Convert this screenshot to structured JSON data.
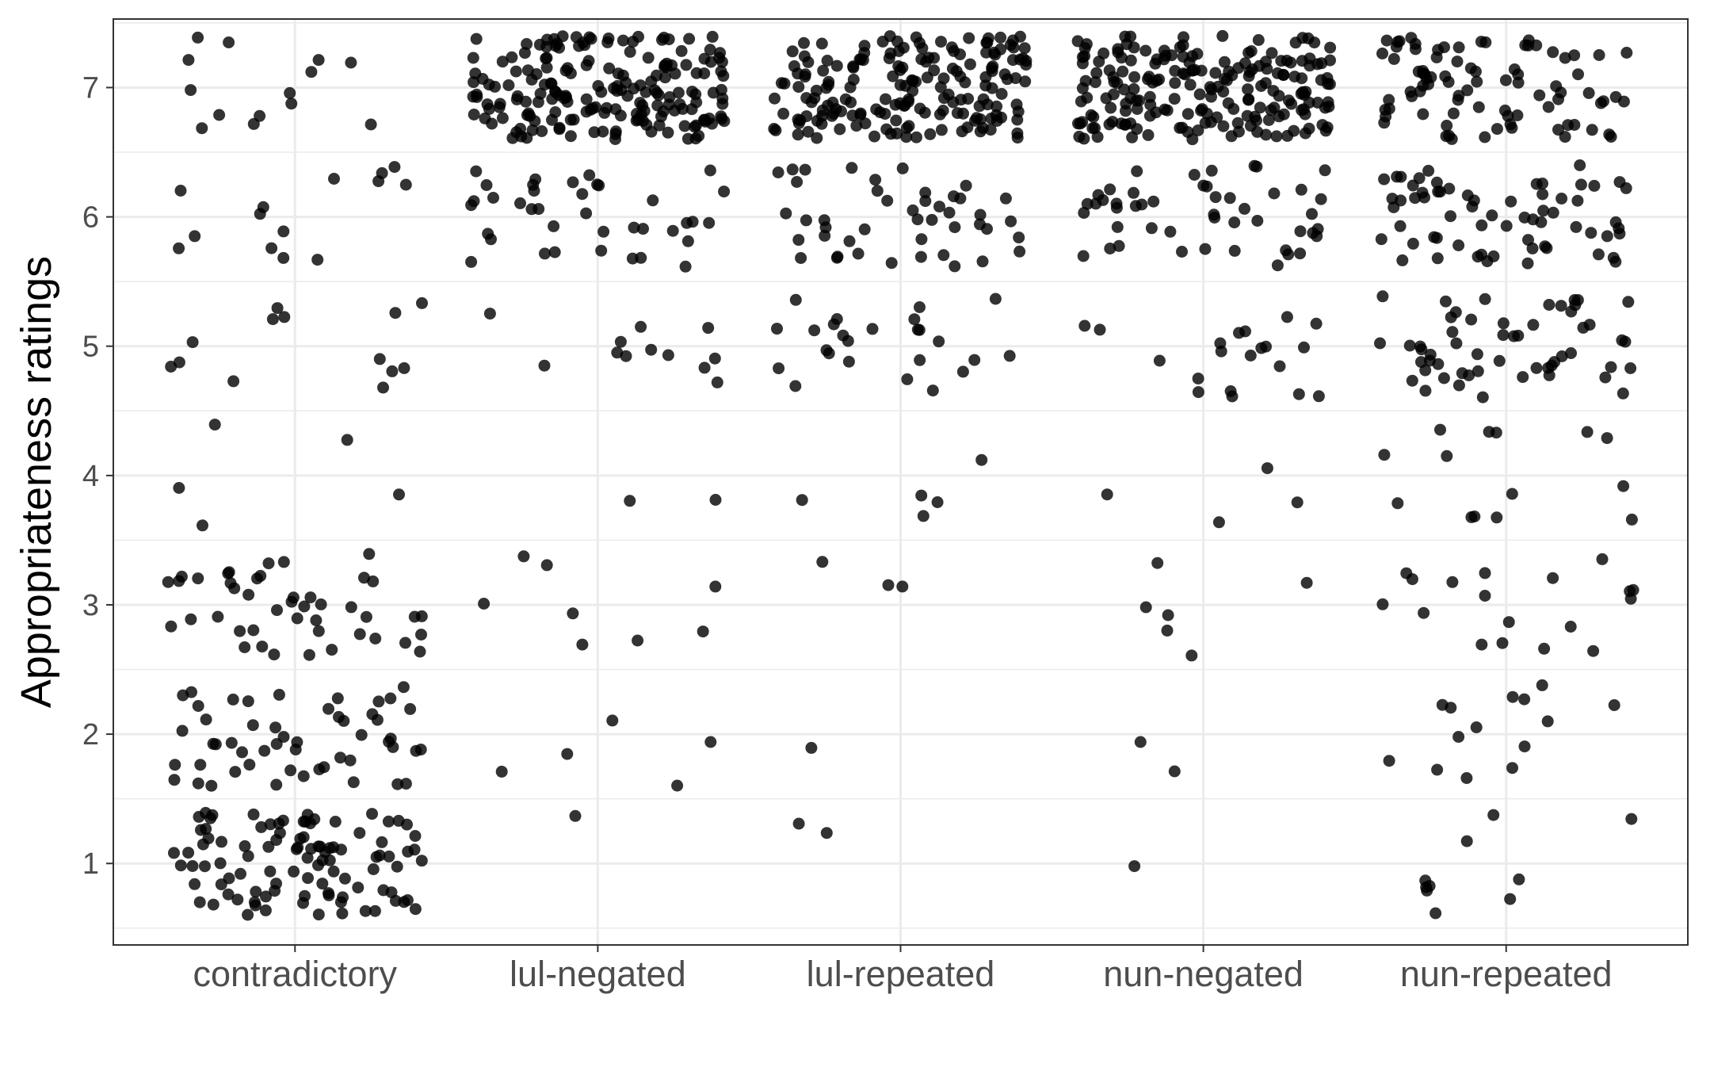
{
  "chart_data": {
    "type": "scatter",
    "subtype": "jitter-strip",
    "title": "",
    "xlabel": "",
    "ylabel": "Appropriateness ratings",
    "categories": [
      "contradictory",
      "lul-negated",
      "lul-repeated",
      "nun-negated",
      "nun-repeated"
    ],
    "y_ticks": [
      1,
      2,
      3,
      4,
      5,
      6,
      7
    ],
    "ylim": [
      0.37,
      7.53
    ],
    "grid": true,
    "legend": "none",
    "point_color": "#000000",
    "point_opacity": 0.8,
    "panel_border_color": "#333333",
    "grid_color": "#ebebeb",
    "jitter_halfwidth": 0.42,
    "points": [
      {
        "category": "contradictory",
        "counts": {
          "1": 100,
          "2": 52,
          "3": 44,
          "4": 5,
          "5": 13,
          "6": 14,
          "7": 14
        }
      },
      {
        "category": "lul-negated",
        "counts": {
          "1": 1,
          "2": 5,
          "3": 8,
          "4": 2,
          "5": 12,
          "6": 38,
          "7": 190
        }
      },
      {
        "category": "lul-repeated",
        "counts": {
          "1": 2,
          "2": 1,
          "3": 3,
          "4": 5,
          "5": 25,
          "6": 45,
          "7": 180
        }
      },
      {
        "category": "nun-negated",
        "counts": {
          "1": 1,
          "2": 2,
          "3": 6,
          "4": 4,
          "5": 20,
          "6": 48,
          "7": 200
        }
      },
      {
        "category": "nun-repeated",
        "counts": {
          "1": 10,
          "2": 14,
          "3": 18,
          "4": 14,
          "5": 55,
          "6": 65,
          "7": 85
        }
      }
    ]
  }
}
